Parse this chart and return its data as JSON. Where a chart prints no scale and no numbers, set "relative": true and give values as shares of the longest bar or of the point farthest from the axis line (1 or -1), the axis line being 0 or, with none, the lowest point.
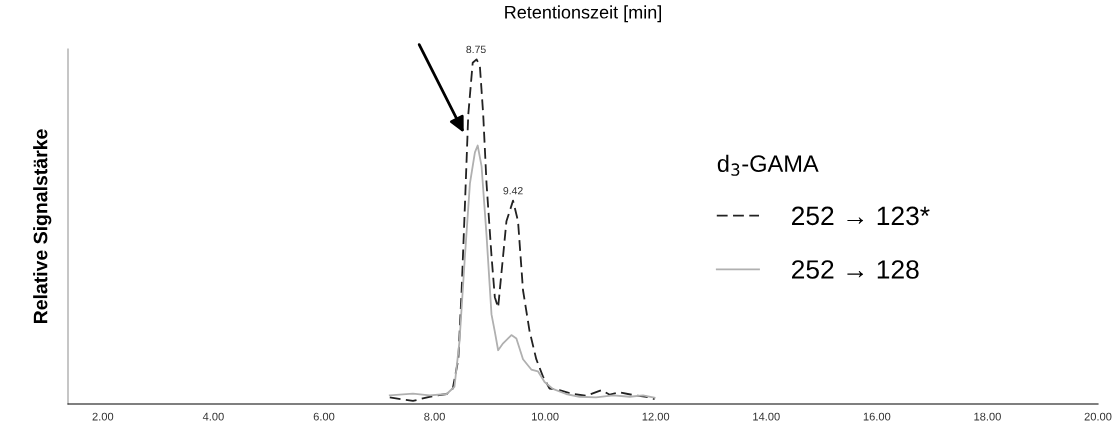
{
  "chart_data": {
    "type": "line",
    "xlabel": "Retentionszeit [min]",
    "ylabel": "Relative Signalstärke",
    "relative": true,
    "legend_title": "d$_{3}$-GAMA",
    "legend": "right",
    "grid": false,
    "xlim": [
      1.37,
      20
    ],
    "xticks": [
      {
        "value": 2,
        "label": "2.00"
      },
      {
        "value": 4,
        "label": "4.00"
      },
      {
        "value": 6,
        "label": "6.00"
      },
      {
        "value": 8,
        "label": "8.00"
      },
      {
        "value": 10,
        "label": "10.00"
      },
      {
        "value": 12,
        "label": "12.00"
      },
      {
        "value": 14,
        "label": "14.00"
      },
      {
        "value": 16,
        "label": "16.00"
      },
      {
        "value": 18,
        "label": "18.00"
      },
      {
        "value": 20,
        "label": "20.00"
      }
    ],
    "series": [
      {
        "name": "252 → 123*",
        "color": "#222222",
        "line_style": "dashed",
        "x": [
          7.19,
          7.61,
          7.91,
          8.22,
          8.33,
          8.43,
          8.49,
          8.55,
          8.61,
          8.69,
          8.76,
          8.82,
          8.88,
          8.94,
          9.03,
          9.09,
          9.15,
          9.21,
          9.3,
          9.42,
          9.51,
          9.6,
          9.72,
          9.84,
          9.96,
          10.08,
          10.26,
          10.5,
          10.75,
          11.02,
          11.17,
          11.35,
          11.59,
          11.83,
          11.98
        ],
        "values": [
          0.019,
          0.009,
          0.021,
          0.029,
          0.045,
          0.13,
          0.33,
          0.58,
          0.84,
          0.99,
          1.0,
          0.98,
          0.84,
          0.64,
          0.43,
          0.31,
          0.28,
          0.38,
          0.53,
          0.59,
          0.53,
          0.33,
          0.21,
          0.13,
          0.08,
          0.045,
          0.04,
          0.029,
          0.024,
          0.04,
          0.027,
          0.034,
          0.026,
          0.021,
          0.014
        ]
      },
      {
        "name": "252 → 128",
        "color": "#b0b0b0",
        "line_style": "solid",
        "x": [
          7.19,
          7.61,
          7.91,
          8.22,
          8.36,
          8.45,
          8.55,
          8.64,
          8.73,
          8.78,
          8.85,
          8.94,
          9.03,
          9.09,
          9.15,
          9.24,
          9.39,
          9.48,
          9.6,
          9.75,
          9.87,
          9.99,
          10.14,
          10.38,
          10.62,
          10.92,
          11.23,
          11.53,
          11.77,
          11.98
        ],
        "values": [
          0.025,
          0.03,
          0.025,
          0.029,
          0.05,
          0.18,
          0.43,
          0.64,
          0.73,
          0.75,
          0.69,
          0.49,
          0.26,
          0.21,
          0.156,
          0.176,
          0.2,
          0.19,
          0.13,
          0.1,
          0.095,
          0.064,
          0.044,
          0.029,
          0.021,
          0.019,
          0.025,
          0.021,
          0.025,
          0.018
        ]
      }
    ],
    "annotations": [
      {
        "text": "8.75",
        "x": 8.75,
        "y": 1.0
      },
      {
        "text": "9.42",
        "x": 9.42,
        "y": 0.59
      }
    ]
  }
}
